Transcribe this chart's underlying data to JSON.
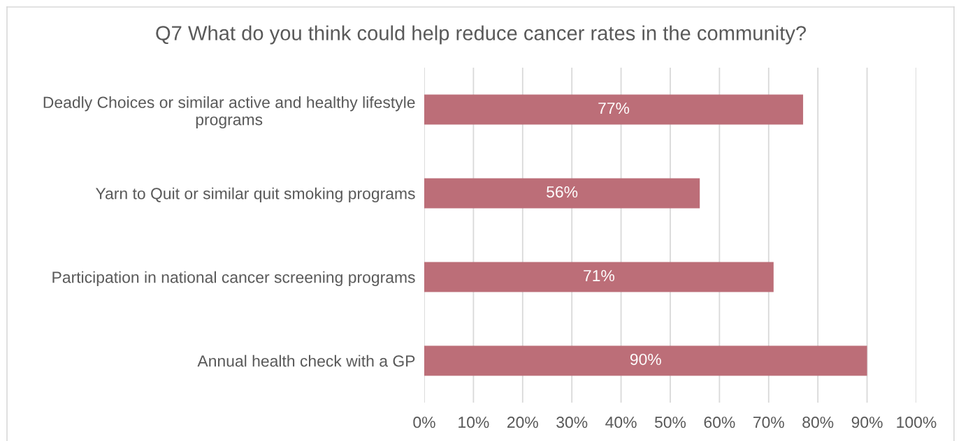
{
  "chart_data": {
    "type": "bar",
    "orientation": "horizontal",
    "title": "Q7 What do you think could help reduce cancer rates in the community?",
    "categories": [
      "Deadly Choices or similar active and healthy lifestyle\nprograms",
      "Yarn to Quit or similar quit smoking programs",
      "Participation in national cancer screening programs",
      "Annual health check with a GP"
    ],
    "values": [
      77,
      56,
      71,
      90
    ],
    "color": "#bc6e78",
    "value_labels": [
      "77%",
      "56%",
      "71%",
      "90%"
    ],
    "xlim": [
      0,
      100
    ],
    "xticks": [
      {
        "value": 0,
        "label": "0%"
      },
      {
        "value": 10,
        "label": "10%"
      },
      {
        "value": 20,
        "label": "20%"
      },
      {
        "value": 30,
        "label": "30%"
      },
      {
        "value": 40,
        "label": "40%"
      },
      {
        "value": 50,
        "label": "50%"
      },
      {
        "value": 60,
        "label": "60%"
      },
      {
        "value": 70,
        "label": "70%"
      },
      {
        "value": 80,
        "label": "80%"
      },
      {
        "value": 90,
        "label": "90%"
      },
      {
        "value": 100,
        "label": "100%"
      }
    ],
    "grid": "x"
  }
}
